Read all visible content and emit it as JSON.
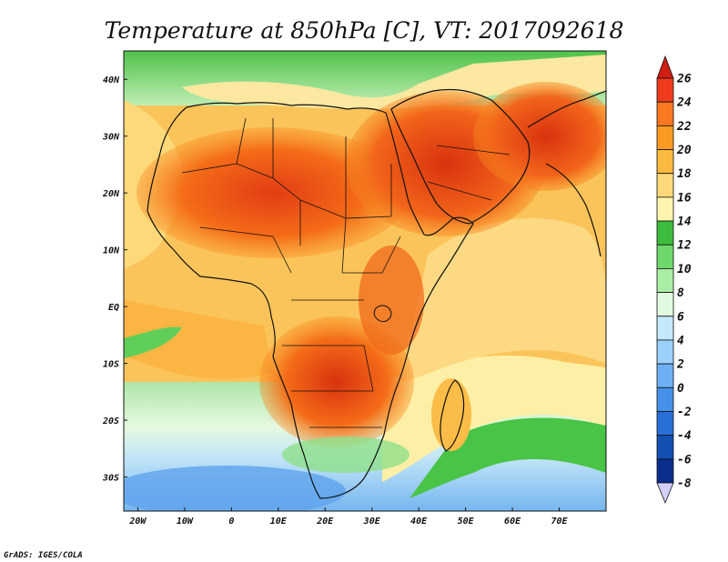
{
  "title": "Temperature at 850hPa [C], VT: 2017092618",
  "footer": "GrADS: IGES/COLA",
  "map": {
    "lon_range": [
      -23,
      80
    ],
    "lat_range": [
      -36,
      45
    ],
    "lon_ticks": [
      "20W",
      "10W",
      "0",
      "10E",
      "20E",
      "30E",
      "40E",
      "50E",
      "60E",
      "70E"
    ],
    "lat_ticks": [
      "40N",
      "30N",
      "20N",
      "10N",
      "EQ",
      "10S",
      "20S",
      "30S"
    ]
  },
  "colorbar": {
    "labels": [
      "26",
      "24",
      "22",
      "20",
      "18",
      "16",
      "14",
      "12",
      "10",
      "8",
      "6",
      "4",
      "2",
      "0",
      "-2",
      "-4",
      "-6",
      "-8"
    ],
    "colors": [
      "#f03c1e",
      "#fa7820",
      "#fb9b22",
      "#fbba40",
      "#fdd97a",
      "#fdf4ad",
      "#3cbc3c",
      "#6ed86a",
      "#aaeda4",
      "#e2fbe0",
      "#c4e8fc",
      "#9cd1fb",
      "#6eaff4",
      "#4690ea",
      "#2870d8",
      "#1450b4",
      "#0a2d8c"
    ],
    "top_cap_color": "#d01e14",
    "bottom_cap_color": "#d2d0fa"
  },
  "icons": [
    "map-border-icon",
    "colorbar-arrow-up-icon",
    "colorbar-arrow-down-icon"
  ]
}
